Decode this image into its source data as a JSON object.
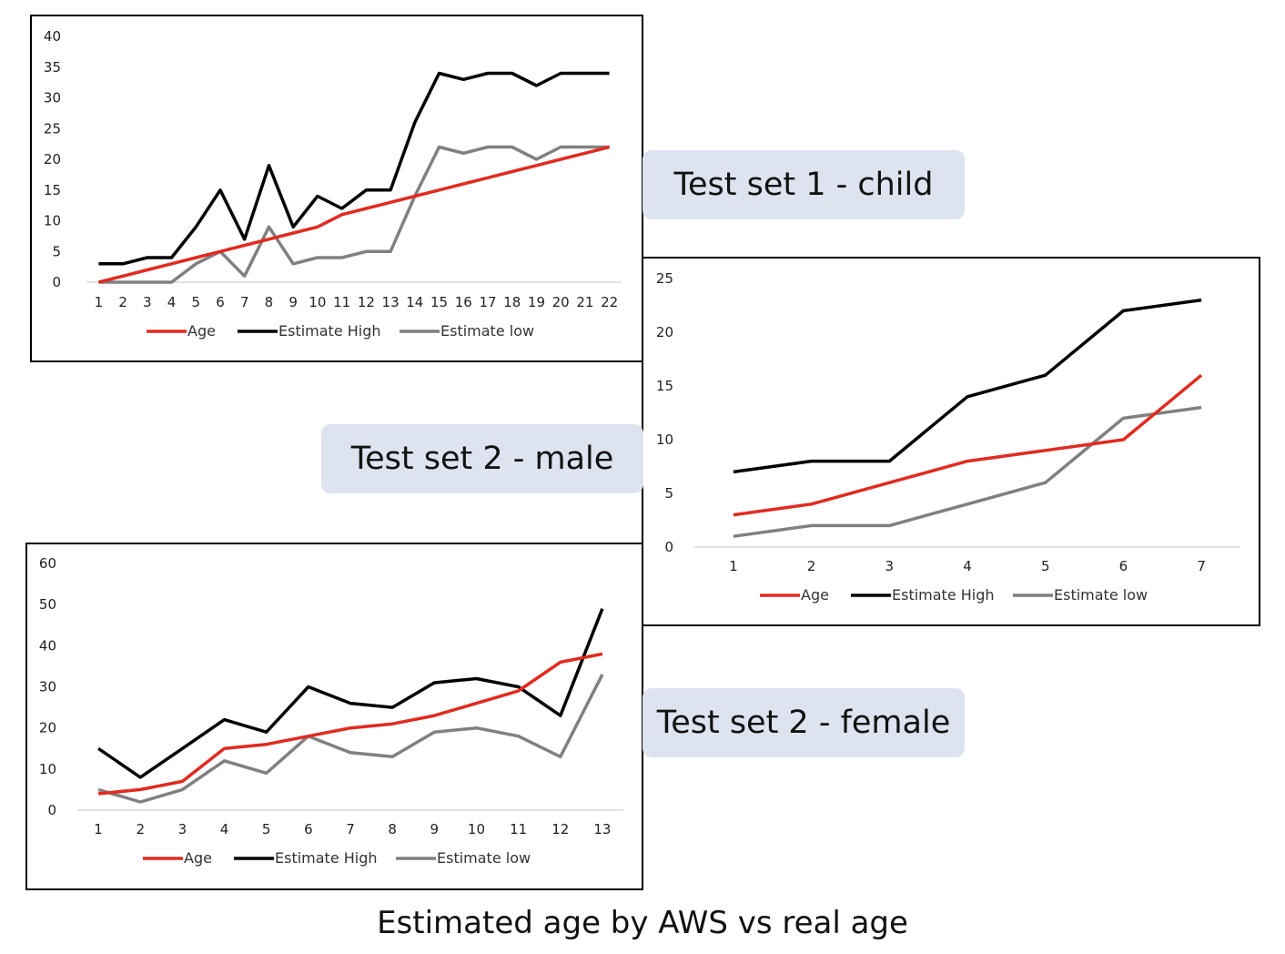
{
  "labels": {
    "child": "Test set 1 - child",
    "male": "Test set 2 - male",
    "female": "Test set 2 - female"
  },
  "caption": "Estimated age by AWS vs real age",
  "colors": {
    "age": "#e02b20",
    "high": "#000000",
    "low": "#808080",
    "label_bg": "#dde3ef"
  },
  "chart_data": [
    {
      "id": "child",
      "type": "line",
      "x": [
        1,
        2,
        3,
        4,
        5,
        6,
        7,
        8,
        9,
        10,
        11,
        12,
        13,
        14,
        15,
        16,
        17,
        18,
        19,
        20,
        21,
        22
      ],
      "ylim": [
        0,
        40
      ],
      "yticks": [
        0,
        5,
        10,
        15,
        20,
        25,
        30,
        35,
        40
      ],
      "grid": false,
      "legend": "bottom",
      "series": [
        {
          "name": "Age",
          "color": "#e02b20",
          "values": [
            0,
            1,
            2,
            3,
            4,
            5,
            6,
            7,
            8,
            9,
            11,
            12,
            13,
            14,
            15,
            16,
            17,
            18,
            19,
            20,
            21,
            22
          ]
        },
        {
          "name": "Estimate High",
          "color": "#000000",
          "values": [
            3,
            3,
            4,
            4,
            9,
            15,
            7,
            19,
            9,
            14,
            12,
            15,
            15,
            26,
            34,
            33,
            34,
            34,
            32,
            34,
            34,
            34
          ]
        },
        {
          "name": "Estimate low",
          "color": "#808080",
          "values": [
            0,
            0,
            0,
            0,
            3,
            5,
            1,
            9,
            3,
            4,
            4,
            5,
            5,
            14,
            22,
            21,
            22,
            22,
            20,
            22,
            22,
            22
          ]
        }
      ]
    },
    {
      "id": "male",
      "type": "line",
      "x": [
        1,
        2,
        3,
        4,
        5,
        6,
        7
      ],
      "ylim": [
        0,
        25
      ],
      "yticks": [
        0,
        5,
        10,
        15,
        20,
        25
      ],
      "grid": false,
      "legend": "bottom",
      "series": [
        {
          "name": "Age",
          "color": "#e02b20",
          "values": [
            3,
            4,
            6,
            8,
            9,
            10,
            16
          ]
        },
        {
          "name": "Estimate High",
          "color": "#000000",
          "values": [
            7,
            8,
            8,
            14,
            16,
            22,
            23
          ]
        },
        {
          "name": "Estimate low",
          "color": "#808080",
          "values": [
            1,
            2,
            2,
            4,
            6,
            12,
            13
          ]
        }
      ]
    },
    {
      "id": "female",
      "type": "line",
      "x": [
        1,
        2,
        3,
        4,
        5,
        6,
        7,
        8,
        9,
        10,
        11,
        12,
        13
      ],
      "ylim": [
        0,
        60
      ],
      "yticks": [
        0,
        10,
        20,
        30,
        40,
        50,
        60
      ],
      "grid": false,
      "legend": "bottom",
      "series": [
        {
          "name": "Age",
          "color": "#e02b20",
          "values": [
            4,
            5,
            7,
            15,
            16,
            18,
            20,
            21,
            23,
            26,
            29,
            36,
            38
          ]
        },
        {
          "name": "Estimate High",
          "color": "#000000",
          "values": [
            15,
            8,
            15,
            22,
            19,
            30,
            26,
            25,
            31,
            32,
            30,
            23,
            49
          ]
        },
        {
          "name": "Estimate low",
          "color": "#808080",
          "values": [
            5,
            2,
            5,
            12,
            9,
            18,
            14,
            13,
            19,
            20,
            18,
            13,
            33
          ]
        }
      ]
    }
  ]
}
